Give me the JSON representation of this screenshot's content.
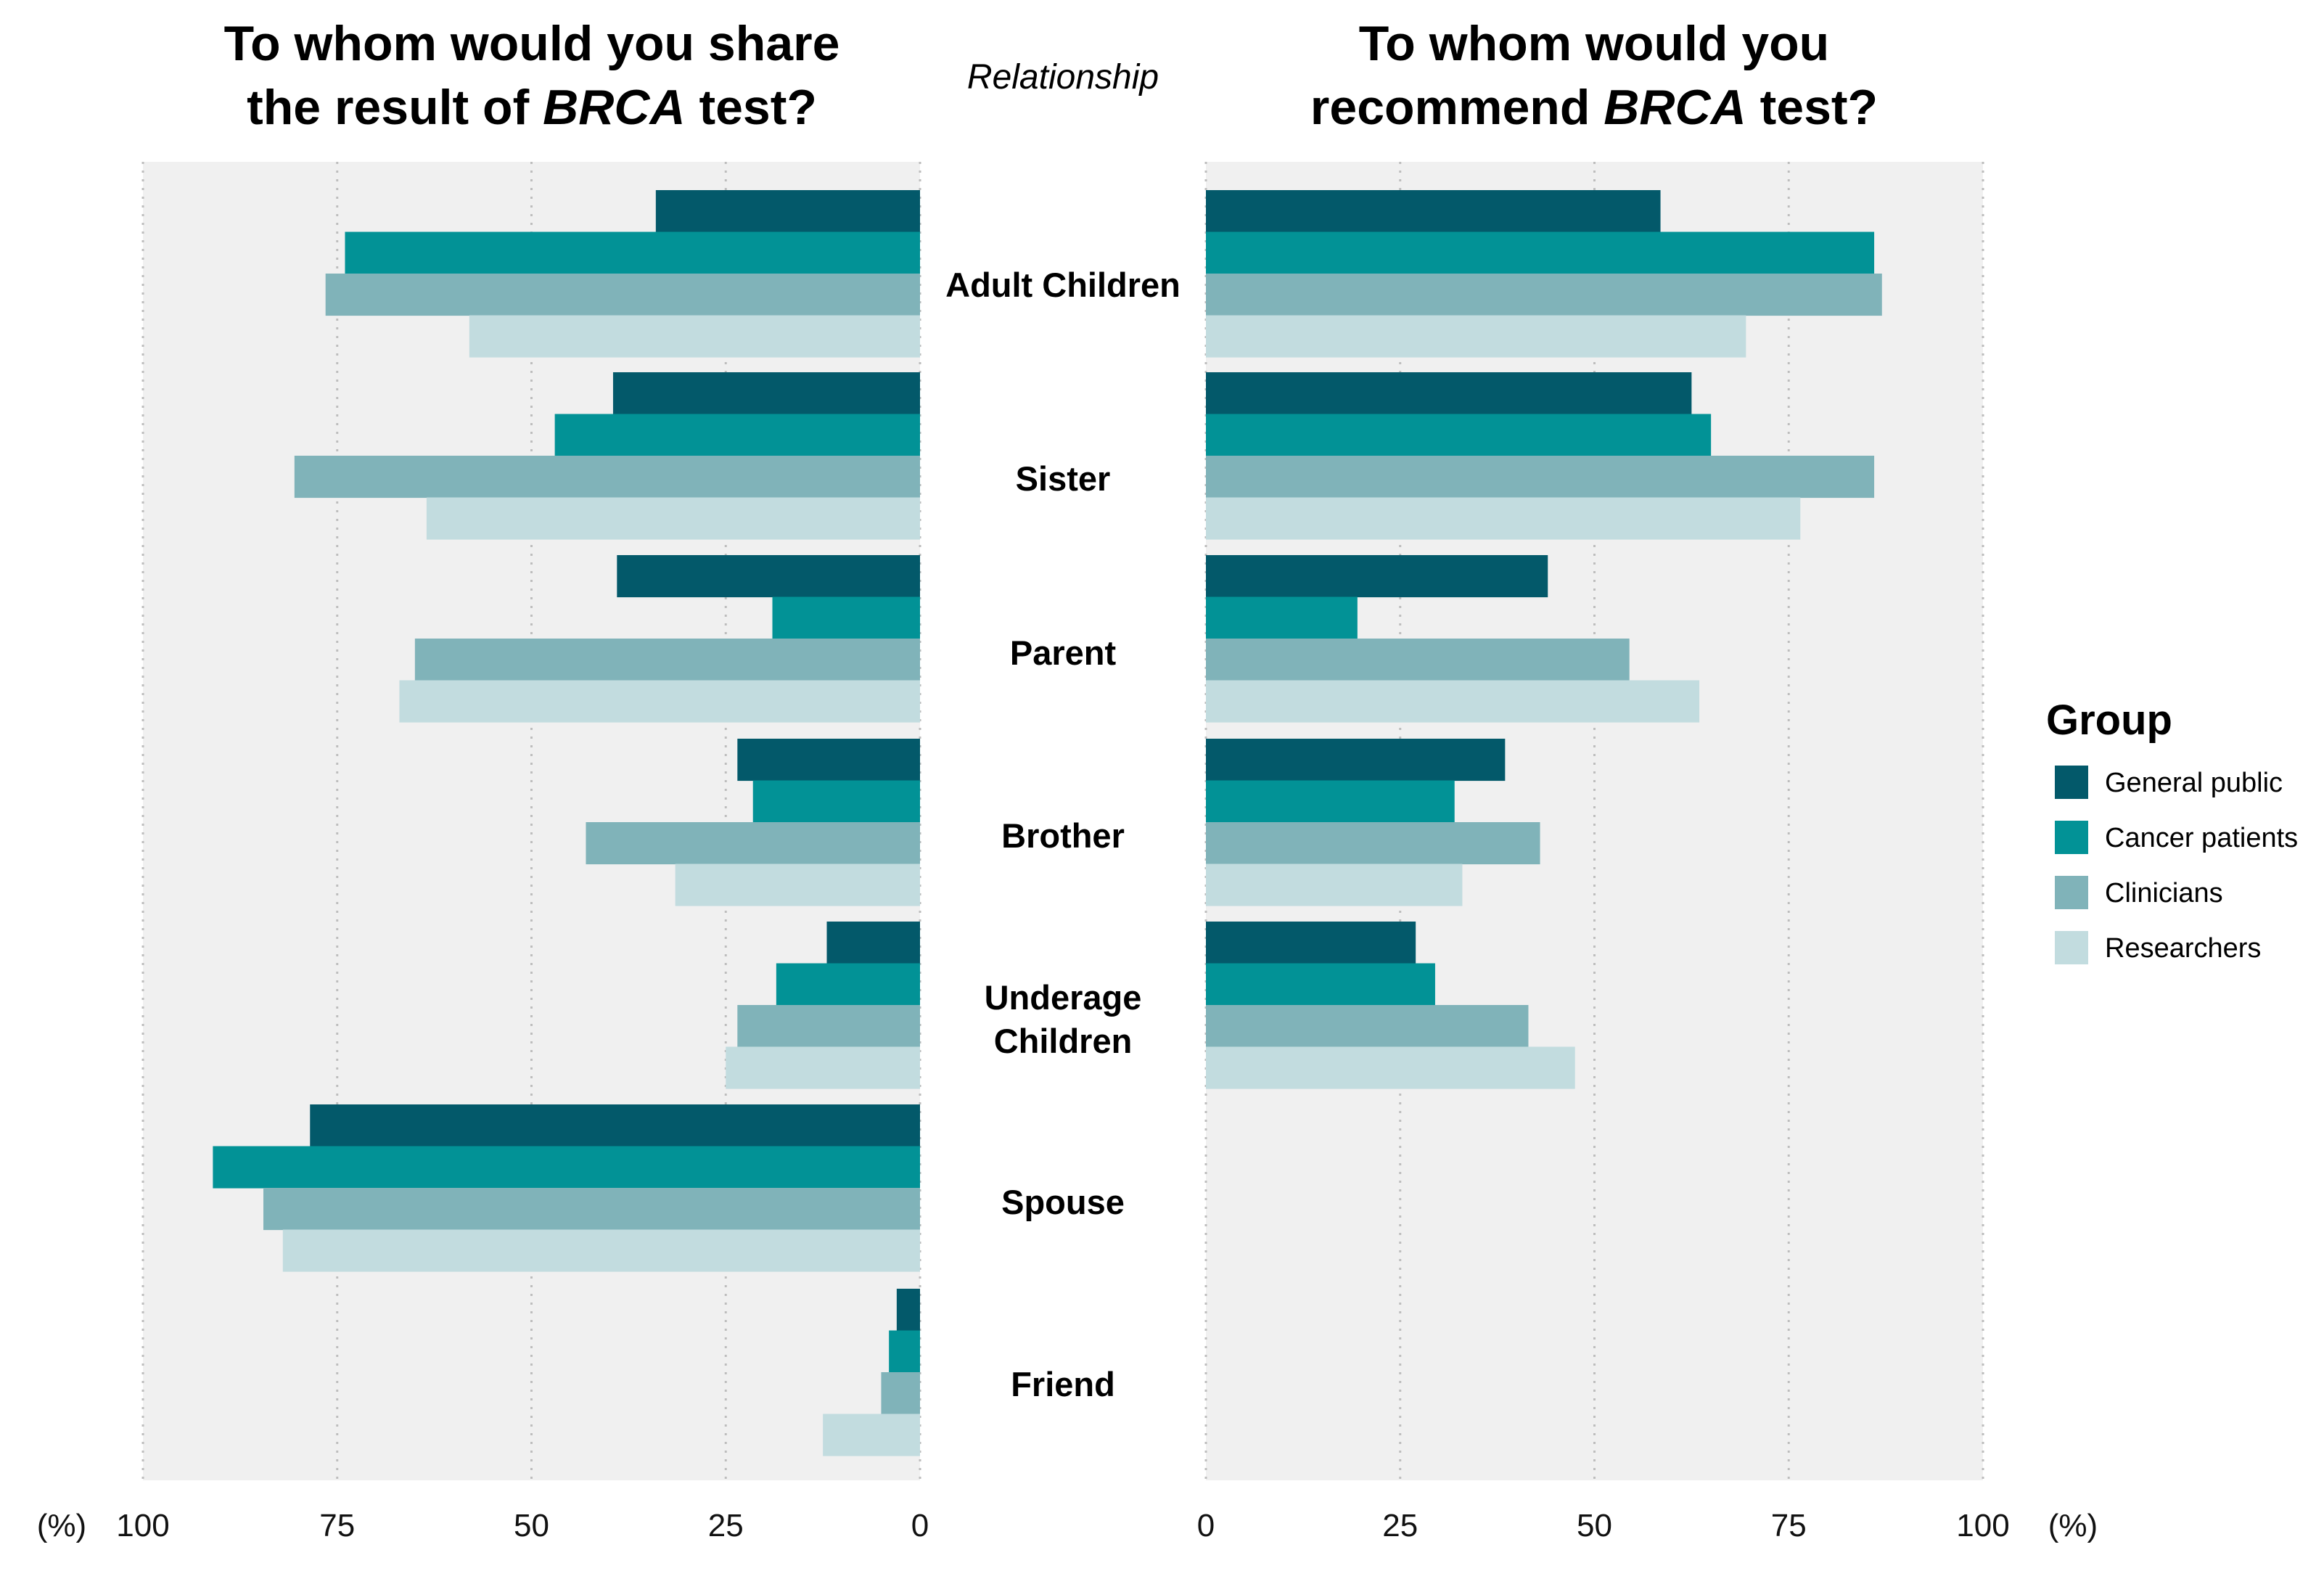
{
  "chart_data": [
    {
      "type": "bar",
      "orientation": "horizontal",
      "x_direction": "reversed",
      "title_lines": [
        [
          {
            "text": "To whom would you share",
            "italic": false
          }
        ],
        [
          {
            "text": "the result of ",
            "italic": false
          },
          {
            "text": "BRCA",
            "italic": true
          },
          {
            "text": " test?",
            "italic": false
          }
        ]
      ],
      "categories": [
        "Adult Children",
        "Sister",
        "Parent",
        "Brother",
        "Underage Children",
        "Spouse",
        "Friend"
      ],
      "series": [
        {
          "name": "General public",
          "values": [
            34,
            39.5,
            39,
            23.5,
            12,
            78.5,
            3
          ]
        },
        {
          "name": "Cancer patients",
          "values": [
            74,
            47,
            19,
            21.5,
            18.5,
            91,
            4
          ]
        },
        {
          "name": "Clinicians",
          "values": [
            76.5,
            80.5,
            65,
            43,
            23.5,
            84.5,
            5
          ]
        },
        {
          "name": "Researchers",
          "values": [
            58,
            63.5,
            67,
            31.5,
            25,
            82,
            12.5
          ]
        }
      ],
      "xlim": [
        0,
        100
      ],
      "xticks": [
        "100",
        "75",
        "50",
        "25",
        "0"
      ],
      "xlabel": "(%)"
    },
    {
      "type": "bar",
      "orientation": "horizontal",
      "title_lines": [
        [
          {
            "text": "To whom would you",
            "italic": false
          }
        ],
        [
          {
            "text": "recommend ",
            "italic": false
          },
          {
            "text": "BRCA",
            "italic": true
          },
          {
            "text": " test?",
            "italic": false
          }
        ]
      ],
      "categories": [
        "Adult Children",
        "Sister",
        "Parent",
        "Brother",
        "Underage Children",
        "Spouse",
        "Friend"
      ],
      "series": [
        {
          "name": "General public",
          "values": [
            58.5,
            62.5,
            44,
            38.5,
            27,
            null,
            null
          ]
        },
        {
          "name": "Cancer patients",
          "values": [
            86,
            65,
            19.5,
            32,
            29.5,
            null,
            null
          ]
        },
        {
          "name": "Clinicians",
          "values": [
            87,
            86,
            54.5,
            43,
            41.5,
            null,
            null
          ]
        },
        {
          "name": "Researchers",
          "values": [
            69.5,
            76.5,
            63.5,
            33,
            47.5,
            null,
            null
          ]
        }
      ],
      "xlim": [
        0,
        100
      ],
      "xticks": [
        "0",
        "25",
        "50",
        "75",
        "100"
      ],
      "xlabel": "(%)"
    }
  ],
  "center_label": "Relationship",
  "category_display_lines": [
    [
      "Adult Children"
    ],
    [
      "Sister"
    ],
    [
      "Parent"
    ],
    [
      "Brother"
    ],
    [
      "Underage",
      "Children"
    ],
    [
      "Spouse"
    ],
    [
      "Friend"
    ]
  ],
  "legend": {
    "title": "Group",
    "items": [
      {
        "label": "General public",
        "color": "#03596a"
      },
      {
        "label": "Cancer patients",
        "color": "#029296"
      },
      {
        "label": "Clinicians",
        "color": "#80b3b9"
      },
      {
        "label": "Researchers",
        "color": "#c2dcdf"
      }
    ]
  },
  "colors": {
    "panel_background": "#f0f0f0",
    "grid": "#bdbdbd"
  }
}
